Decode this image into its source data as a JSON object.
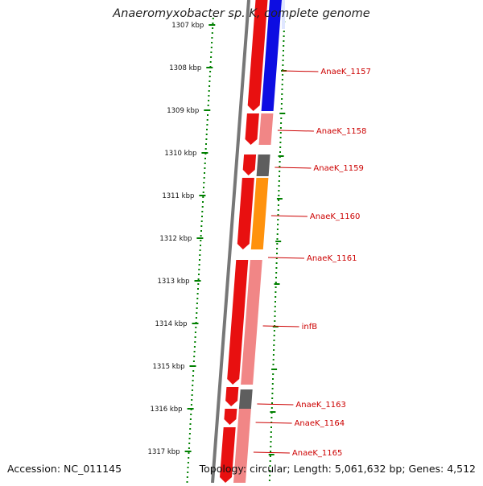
{
  "title": "Anaeromyxobacter sp. K, complete genome",
  "footer": {
    "accession_label": "Accession: NC_011145",
    "topology_label": "Topology: circular; Length: 5,061,632 bp; Genes: 4,512"
  },
  "colors": {
    "label_red": "#cc0000",
    "forward_red": "#e81010",
    "light_red": "#f08080",
    "blue": "#0000e0",
    "orange": "#ff8c00",
    "gray": "#555555",
    "ruler_green": "#008000",
    "backbone": "#777777"
  },
  "ticks": [
    "1307 kbp",
    "1308 kbp",
    "1309 kbp",
    "1310 kbp",
    "1311 kbp",
    "1312 kbp",
    "1313 kbp",
    "1314 kbp",
    "1315 kbp",
    "1316 kbp",
    "1317 kbp"
  ],
  "genes": [
    {
      "name": "AnaeK_1157",
      "color": "blue"
    },
    {
      "name": "AnaeK_1158",
      "color": "light_red"
    },
    {
      "name": "AnaeK_1159",
      "color": "gray"
    },
    {
      "name": "AnaeK_1160",
      "color": "orange"
    },
    {
      "name": "AnaeK_1161",
      "color": "light_red"
    },
    {
      "name": "infB",
      "color": "light_red"
    },
    {
      "name": "AnaeK_1163",
      "color": "gray"
    },
    {
      "name": "AnaeK_1164",
      "color": "light_red"
    },
    {
      "name": "AnaeK_1165",
      "color": "light_red"
    }
  ]
}
